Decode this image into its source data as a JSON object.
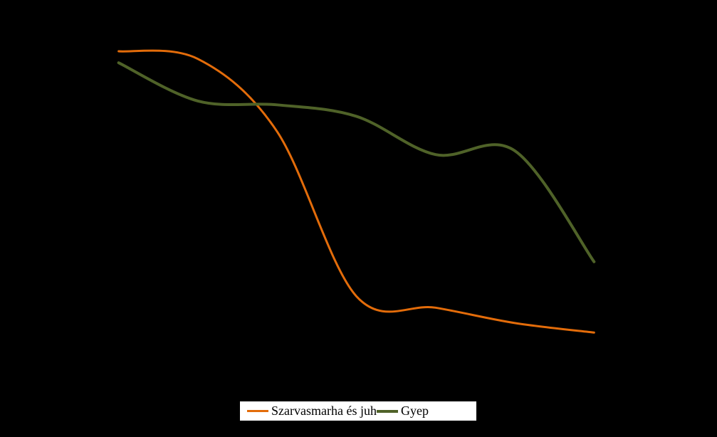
{
  "chart_data": {
    "type": "line",
    "title": "",
    "xlabel": "",
    "ylabel": "",
    "x_slots": 7,
    "ylim": [
      0,
      9
    ],
    "grid": false,
    "legend_position": "bottom",
    "series": [
      {
        "name": "Szarvasmarha és juh",
        "color": "#e36c0a",
        "x": [
          0.5,
          1.5,
          2.5,
          3.5,
          4.5,
          5.5,
          6.5
        ],
        "values": [
          8.2,
          8.0,
          6.1,
          1.8,
          1.5,
          1.1,
          0.85
        ]
      },
      {
        "name": "Gyep",
        "color": "#4f6228",
        "x": [
          0.5,
          1.5,
          2.5,
          3.5,
          4.5,
          5.5,
          6.5
        ],
        "values": [
          7.9,
          6.9,
          6.8,
          6.5,
          5.5,
          5.6,
          2.7
        ]
      }
    ]
  }
}
